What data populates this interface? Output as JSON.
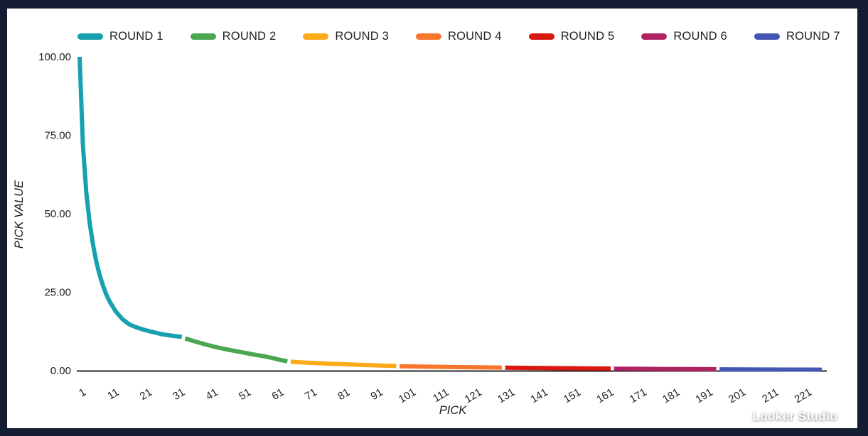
{
  "page": {
    "background_color": "#151d32",
    "card_color": "#ffffff"
  },
  "watermark": {
    "text": "Looker Studio"
  },
  "chart_data": {
    "type": "line",
    "title": "",
    "xlabel": "PICK",
    "ylabel": "PICK VALUE",
    "xlim": [
      1,
      226
    ],
    "ylim": [
      0,
      100
    ],
    "grid": false,
    "legend_position": "top",
    "x_ticks": [
      1,
      11,
      21,
      31,
      41,
      51,
      61,
      71,
      81,
      91,
      101,
      111,
      121,
      131,
      141,
      151,
      161,
      171,
      181,
      191,
      201,
      211,
      221
    ],
    "y_tick_labels": [
      "100.00",
      "75.00",
      "50.00",
      "25.00",
      "0.00"
    ],
    "axis_line_color": "#000000",
    "series": [
      {
        "name": "ROUND 1",
        "color": "#17a1af",
        "points": [
          [
            1,
            100
          ],
          [
            2,
            72
          ],
          [
            3,
            57
          ],
          [
            4,
            47.5
          ],
          [
            5,
            40.5
          ],
          [
            6,
            35
          ],
          [
            7,
            30.8
          ],
          [
            8,
            27.3
          ],
          [
            9,
            24.5
          ],
          [
            10,
            22.2
          ],
          [
            12,
            18.8
          ],
          [
            14,
            16.4
          ],
          [
            16,
            14.8
          ],
          [
            18,
            13.9
          ],
          [
            20,
            13.2
          ],
          [
            22,
            12.6
          ],
          [
            24,
            12.1
          ],
          [
            26,
            11.6
          ],
          [
            28,
            11.3
          ],
          [
            30,
            11.0
          ],
          [
            32,
            10.8
          ]
        ]
      },
      {
        "name": "ROUND 2",
        "color": "#4aa651",
        "points": [
          [
            33,
            10.3
          ],
          [
            36,
            9.3
          ],
          [
            39,
            8.4
          ],
          [
            42,
            7.6
          ],
          [
            45,
            6.9
          ],
          [
            48,
            6.3
          ],
          [
            51,
            5.7
          ],
          [
            54,
            5.1
          ],
          [
            57,
            4.6
          ],
          [
            60,
            3.9
          ],
          [
            62,
            3.4
          ],
          [
            64,
            3.0
          ]
        ]
      },
      {
        "name": "ROUND 3",
        "color": "#fbab18",
        "points": [
          [
            65,
            2.85
          ],
          [
            69,
            2.6
          ],
          [
            73,
            2.4
          ],
          [
            77,
            2.2
          ],
          [
            81,
            2.05
          ],
          [
            85,
            1.9
          ],
          [
            89,
            1.75
          ],
          [
            93,
            1.6
          ],
          [
            97,
            1.5
          ]
        ]
      },
      {
        "name": "ROUND 4",
        "color": "#f8762b",
        "points": [
          [
            98,
            1.4
          ],
          [
            104,
            1.3
          ],
          [
            110,
            1.22
          ],
          [
            116,
            1.14
          ],
          [
            122,
            1.07
          ],
          [
            129,
            1.0
          ]
        ]
      },
      {
        "name": "ROUND 5",
        "color": "#d9180f",
        "points": [
          [
            130,
            0.95
          ],
          [
            137,
            0.88
          ],
          [
            144,
            0.82
          ],
          [
            151,
            0.76
          ],
          [
            157,
            0.71
          ],
          [
            162,
            0.67
          ]
        ]
      },
      {
        "name": "ROUND 6",
        "color": "#b02363",
        "points": [
          [
            163,
            0.63
          ],
          [
            170,
            0.59
          ],
          [
            177,
            0.55
          ],
          [
            184,
            0.51
          ],
          [
            190,
            0.48
          ],
          [
            194,
            0.46
          ]
        ]
      },
      {
        "name": "ROUND 7",
        "color": "#4456b4",
        "points": [
          [
            195,
            0.43
          ],
          [
            202,
            0.4
          ],
          [
            209,
            0.37
          ],
          [
            216,
            0.35
          ],
          [
            221,
            0.33
          ],
          [
            226,
            0.31
          ]
        ]
      }
    ]
  }
}
